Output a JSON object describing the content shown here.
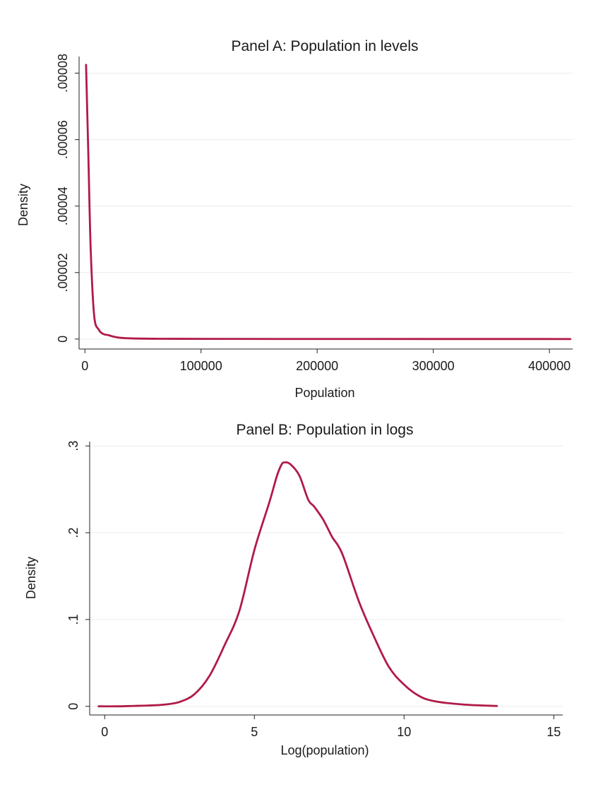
{
  "figure": {
    "line_color": "#b11a47",
    "grid_color": "#ececec"
  },
  "chart_data": [
    {
      "type": "line",
      "title": "Panel A: Population in levels",
      "xlabel": "Population",
      "ylabel": "Density",
      "xlim": [
        -5000,
        420000
      ],
      "ylim": [
        -3e-06,
        8.5e-05
      ],
      "xticks": [
        0,
        100000,
        200000,
        300000,
        400000
      ],
      "xtick_labels": [
        "0",
        "100000",
        "200000",
        "300000",
        "400000"
      ],
      "yticks": [
        0,
        2e-05,
        4e-05,
        6e-05,
        8e-05
      ],
      "ytick_labels": [
        "0",
        ".00002",
        ".00004",
        ".00006",
        ".00008"
      ],
      "grid": true,
      "series": [
        {
          "x": [
            1000,
            3000,
            5000,
            8000,
            12000,
            16000,
            20000,
            25000,
            30000,
            40000,
            60000,
            100000,
            200000,
            300000,
            418000
          ],
          "y": [
            8.25e-05,
            5.5e-05,
            2.7e-05,
            7e-06,
            2.8e-06,
            1.5e-06,
            1.2e-06,
            7e-07,
            4e-07,
            2e-07,
            1e-07,
            5e-08,
            3e-08,
            2e-08,
            1e-08
          ]
        }
      ]
    },
    {
      "type": "line",
      "title": "Panel B: Population in logs",
      "xlabel": "Log(population)",
      "ylabel": "Density",
      "xlim": [
        -0.5,
        15.3
      ],
      "ylim": [
        -0.01,
        0.305
      ],
      "xticks": [
        0,
        5,
        10,
        15
      ],
      "xtick_labels": [
        "0",
        "5",
        "10",
        "15"
      ],
      "yticks": [
        0,
        0.1,
        0.2,
        0.3
      ],
      "ytick_labels": [
        "0",
        ".1",
        ".2",
        ".3"
      ],
      "grid": true,
      "series": [
        {
          "x": [
            -0.2,
            0.5,
            1.0,
            1.5,
            2.0,
            2.5,
            3.0,
            3.5,
            4.0,
            4.5,
            5.0,
            5.5,
            5.75,
            5.9,
            6.0,
            6.2,
            6.5,
            6.8,
            7.0,
            7.3,
            7.6,
            7.8,
            8.0,
            8.5,
            9.0,
            9.5,
            10.0,
            10.5,
            11.0,
            12.0,
            13.1
          ],
          "y": [
            0.0,
            0.0,
            0.0005,
            0.001,
            0.002,
            0.005,
            0.014,
            0.035,
            0.07,
            0.11,
            0.18,
            0.235,
            0.265,
            0.278,
            0.281,
            0.279,
            0.266,
            0.238,
            0.23,
            0.215,
            0.195,
            0.185,
            0.17,
            0.12,
            0.08,
            0.045,
            0.025,
            0.012,
            0.006,
            0.002,
            0.0004
          ]
        }
      ]
    }
  ]
}
